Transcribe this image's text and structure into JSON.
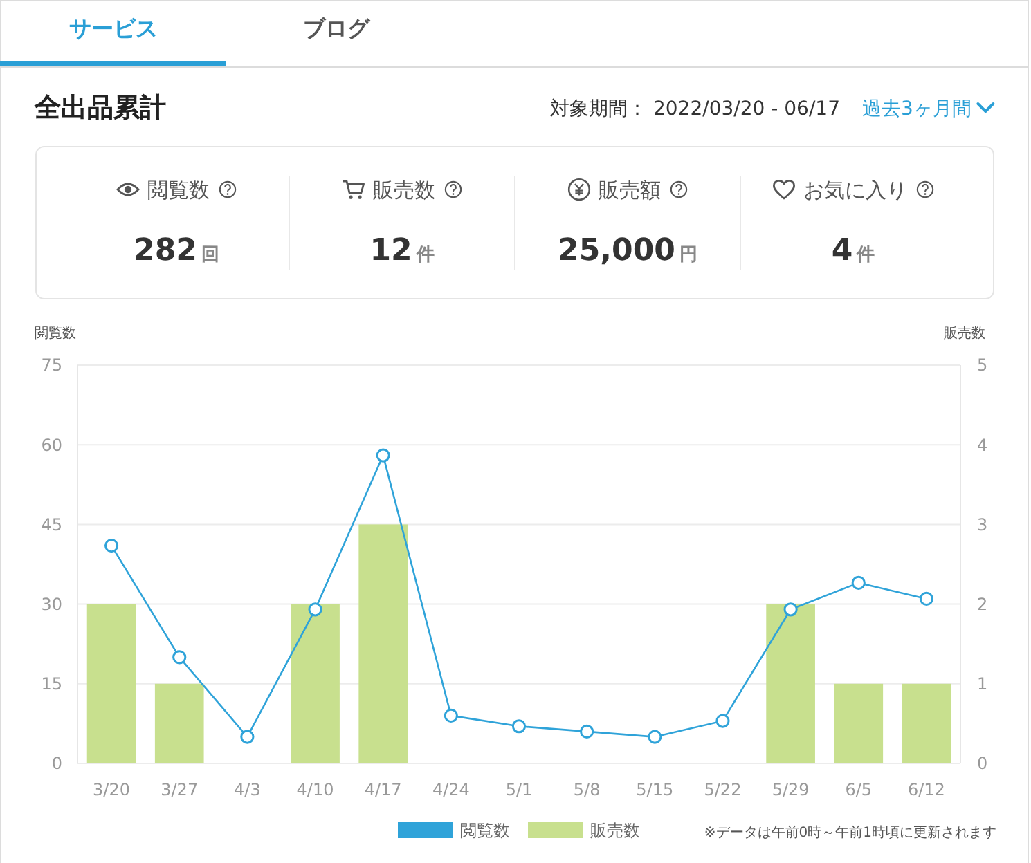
{
  "chart_data": [
    {
      "type": "other",
      "title": "全出品累計",
      "subtitle": "対象期間： 2022/03/20 - 06/17",
      "categories": [
        "閲覧数",
        "販売数",
        "販売額",
        "お気に入り"
      ],
      "value_labels": [
        "282回",
        "12件",
        "25,000円",
        "4件"
      ],
      "annotations": [
        "サービス",
        "ブログ",
        "過去3ヶ月間"
      ]
    },
    {
      "type": "bar",
      "categories": [
        "3/20",
        "3/27",
        "4/3",
        "4/10",
        "4/17",
        "4/24",
        "5/1",
        "5/8",
        "5/15",
        "5/22",
        "5/29",
        "6/5",
        "6/12"
      ],
      "series": [
        {
          "name": "閲覧数",
          "type": "line",
          "color": "#2fa3d9",
          "values": [
            41,
            20,
            5,
            29,
            58,
            9,
            7,
            6,
            5,
            8,
            29,
            34,
            31
          ]
        },
        {
          "name": "販売数",
          "type": "bar",
          "color": "#c8e08e",
          "axis": "y2",
          "values": [
            2,
            1,
            0,
            2,
            3,
            0,
            0,
            0,
            0,
            0,
            2,
            1,
            1
          ]
        }
      ],
      "ylabel": "閲覧数",
      "y2label": "販売数",
      "ylim": [
        0,
        75
      ],
      "yticks": [
        0,
        15,
        30,
        45,
        60,
        75
      ],
      "y2lim": [
        0,
        5
      ],
      "y2ticks": [
        0,
        1,
        2,
        3,
        4,
        5
      ],
      "grid": "y",
      "legend": "bottom",
      "marker": "circle",
      "annotations": [
        "※データは午前0時～午前1時頃に更新されます"
      ]
    }
  ]
}
